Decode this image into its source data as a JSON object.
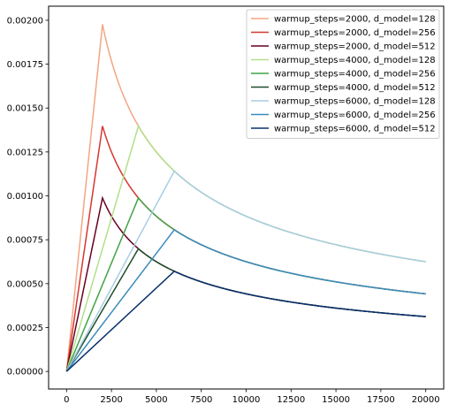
{
  "chart_data": {
    "type": "line",
    "title": "",
    "xlabel": "",
    "ylabel": "",
    "xlim": [
      -1000,
      21000
    ],
    "ylim": [
      -0.0001,
      0.00208
    ],
    "grid": false,
    "legend_position": "top-right",
    "x_ticks": [
      0,
      2500,
      5000,
      7500,
      10000,
      12500,
      15000,
      17500,
      20000
    ],
    "x_tick_labels": [
      "0",
      "2500",
      "5000",
      "7500",
      "10000",
      "12500",
      "15000",
      "17500",
      "20000"
    ],
    "y_ticks": [
      0,
      0.00025,
      0.0005,
      0.00075,
      0.001,
      0.00125,
      0.0015,
      0.00175,
      0.002
    ],
    "y_tick_labels": [
      "0.00000",
      "0.00025",
      "0.00050",
      "0.00075",
      "0.00100",
      "0.00125",
      "0.00150",
      "0.00175",
      "0.00200"
    ],
    "x_range": [
      0,
      20000
    ],
    "series": [
      {
        "name": "warmup_steps=2000, d_model=128",
        "color": "#f4a582",
        "warmup_steps": 2000,
        "d_model": 128
      },
      {
        "name": "warmup_steps=2000, d_model=256",
        "color": "#d6372f",
        "warmup_steps": 2000,
        "d_model": 256
      },
      {
        "name": "warmup_steps=2000, d_model=512",
        "color": "#67001f",
        "warmup_steps": 2000,
        "d_model": 512
      },
      {
        "name": "warmup_steps=4000, d_model=128",
        "color": "#b2df8a",
        "warmup_steps": 4000,
        "d_model": 128
      },
      {
        "name": "warmup_steps=4000, d_model=256",
        "color": "#41a345",
        "warmup_steps": 4000,
        "d_model": 256
      },
      {
        "name": "warmup_steps=4000, d_model=512",
        "color": "#1f4d2b",
        "warmup_steps": 4000,
        "d_model": 512
      },
      {
        "name": "warmup_steps=6000, d_model=128",
        "color": "#a6cee3",
        "warmup_steps": 6000,
        "d_model": 128
      },
      {
        "name": "warmup_steps=6000, d_model=256",
        "color": "#3a8bbd",
        "warmup_steps": 6000,
        "d_model": 256
      },
      {
        "name": "warmup_steps=6000, d_model=512",
        "color": "#08306b",
        "warmup_steps": 6000,
        "d_model": 512
      }
    ]
  }
}
